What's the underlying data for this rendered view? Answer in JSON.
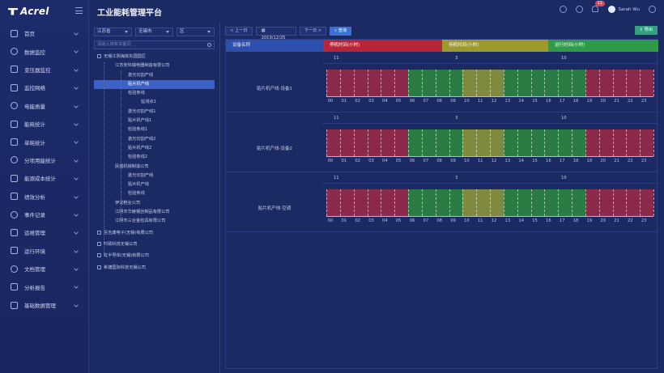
{
  "brand": "Acrel",
  "app_title": "工业能耗管理平台",
  "user": {
    "name": "Sarah Wu",
    "notif_count": "11"
  },
  "menu": [
    {
      "label": "首页",
      "icon": "home-icon"
    },
    {
      "label": "数据监控",
      "icon": "monitor-icon"
    },
    {
      "label": "变压器监控",
      "icon": "transformer-icon"
    },
    {
      "label": "监控网络",
      "icon": "network-icon"
    },
    {
      "label": "电能质量",
      "icon": "power-quality-icon"
    },
    {
      "label": "能耗统计",
      "icon": "bar-chart-icon"
    },
    {
      "label": "单耗统计",
      "icon": "unit-consumption-icon"
    },
    {
      "label": "分项用能统计",
      "icon": "lightbulb-icon"
    },
    {
      "label": "能源成本统计",
      "icon": "cost-icon"
    },
    {
      "label": "绩效分析",
      "icon": "trend-icon"
    },
    {
      "label": "事件记录",
      "icon": "event-icon"
    },
    {
      "label": "运维管理",
      "icon": "maintenance-icon"
    },
    {
      "label": "运行环境",
      "icon": "environment-icon"
    },
    {
      "label": "文档管理",
      "icon": "document-icon"
    },
    {
      "label": "分析报告",
      "icon": "report-icon"
    },
    {
      "label": "基础数据管理",
      "icon": "database-icon"
    }
  ],
  "filters": {
    "province": "江苏省",
    "city": "无锡市",
    "district": "区",
    "search_placeholder": "请输入搜索关键词"
  },
  "tree": [
    {
      "label": "无锡江阴海岸东园园区",
      "level": 0,
      "icon": true
    },
    {
      "label": "江苏安科瑞电器制造有限公司",
      "level": 1
    },
    {
      "label": "激光切割产线",
      "level": 2
    },
    {
      "label": "贴片机产线",
      "level": 2,
      "selected": true
    },
    {
      "label": "检验条线",
      "level": 2
    },
    {
      "label": "监测点1",
      "level": 3
    },
    {
      "label": "激光切割产线1",
      "level": 2
    },
    {
      "label": "贴片机产线1",
      "level": 2
    },
    {
      "label": "检验条线1",
      "level": 2
    },
    {
      "label": "激光切割产线2",
      "level": 2
    },
    {
      "label": "贴片机产线2",
      "level": 2
    },
    {
      "label": "检验条线2",
      "level": 2
    },
    {
      "label": "民盛机械制造公司",
      "level": 1
    },
    {
      "label": "激光切割产线",
      "level": 2
    },
    {
      "label": "贴片机产线",
      "level": 2
    },
    {
      "label": "检验条线",
      "level": 2
    },
    {
      "label": "伊龙鞋业公司",
      "level": 1
    },
    {
      "label": "江阴市华赫钢丝制品有限公司",
      "level": 1
    },
    {
      "label": "江阴市三合金检具有限公司",
      "level": 1
    },
    {
      "label": "尼吉康电子(无锡)有限公司",
      "level": 0,
      "icon": true
    },
    {
      "label": "时硕科技无锡公司",
      "level": 0,
      "icon": true
    },
    {
      "label": "虹半导体(无锡)有限公司",
      "level": 0,
      "icon": true
    },
    {
      "label": "希捷国际科技无锡公司",
      "level": 0,
      "icon": true
    }
  ],
  "toolbar": {
    "prev": "< 上一日",
    "date": "2019/12/25",
    "next": "下一日 >",
    "query": "查询",
    "export": "导出"
  },
  "columns": {
    "device": "设备名称",
    "stop": "停机时间(小时)",
    "standby": "待机时间(小时)",
    "run": "运行时间(小时)"
  },
  "colors": {
    "stop": "#b8253a",
    "standby": "#9c9a2d",
    "run": "#2f9a4a",
    "stop_bar": "#8c2a4b",
    "standby_bar": "#7f8a3e",
    "run_bar": "#2b7b45"
  },
  "hours": [
    "00",
    "01",
    "02",
    "03",
    "04",
    "05",
    "06",
    "07",
    "08",
    "09",
    "10",
    "11",
    "12",
    "13",
    "14",
    "15",
    "16",
    "17",
    "18",
    "19",
    "20",
    "21",
    "22",
    "23"
  ],
  "devices": [
    {
      "name": "贴片机产线-设备1",
      "stop": "11",
      "standby": "3",
      "run": "10"
    },
    {
      "name": "贴片机产线-设备2",
      "stop": "11",
      "standby": "3",
      "run": "10"
    },
    {
      "name": "贴片机产线-空调",
      "stop": "11",
      "standby": "3",
      "run": "10"
    }
  ],
  "timeline_states": [
    "stop",
    "stop",
    "stop",
    "stop",
    "stop",
    "stop",
    "run",
    "run",
    "run",
    "run",
    "standby",
    "standby",
    "standby",
    "run",
    "run",
    "run",
    "run",
    "run",
    "run",
    "stop",
    "stop",
    "stop",
    "stop",
    "stop"
  ]
}
